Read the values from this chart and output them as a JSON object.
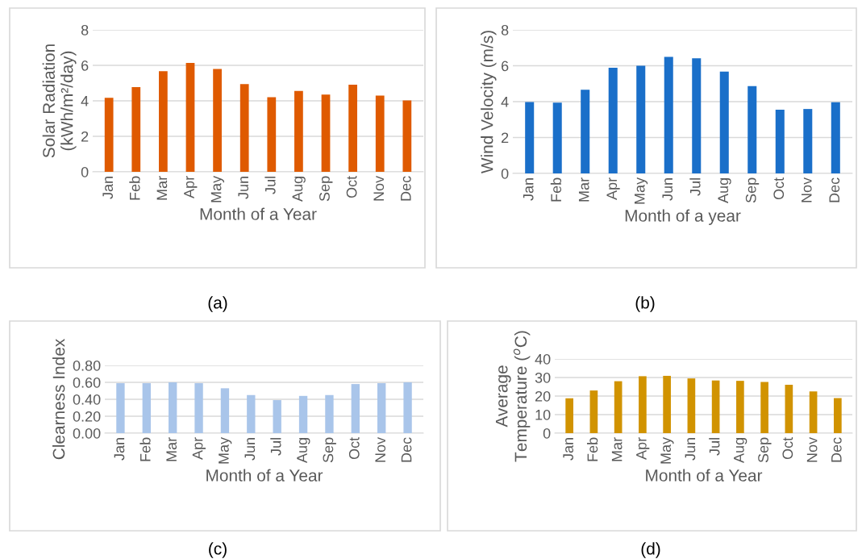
{
  "chart_data": [
    {
      "type": "bar",
      "ylabel": "Solar Radiation\n(kWh/m²/day)",
      "xlabel": "Month of a Year",
      "annotations": [
        "(a)"
      ],
      "categories": [
        "Jan",
        "Feb",
        "Mar",
        "Apr",
        "May",
        "Jun",
        "Jul",
        "Aug",
        "Sep",
        "Oct",
        "Nov",
        "Dec"
      ],
      "values": [
        4.17,
        4.77,
        5.67,
        6.14,
        5.8,
        4.94,
        4.2,
        4.56,
        4.35,
        4.91,
        4.3,
        4.02
      ],
      "color": "#df5a00",
      "ylim": [
        0,
        8
      ],
      "yticks": [
        0,
        2,
        4,
        6,
        8
      ],
      "grid": "y"
    },
    {
      "type": "bar",
      "ylabel": "Wind Velocity (m/s)",
      "xlabel": "Month of a year",
      "annotations": [
        "(b)"
      ],
      "categories": [
        "Jan",
        "Feb",
        "Mar",
        "Apr",
        "May",
        "Jun",
        "Jul",
        "Aug",
        "Sep",
        "Oct",
        "Nov",
        "Dec"
      ],
      "values": [
        3.98,
        3.94,
        4.66,
        5.89,
        6.0,
        6.5,
        6.42,
        5.67,
        4.87,
        3.55,
        3.59,
        3.97
      ],
      "color": "#1a6fc9",
      "ylim": [
        0,
        8
      ],
      "yticks": [
        0,
        2,
        4,
        6,
        8
      ],
      "grid": "y"
    },
    {
      "type": "bar",
      "ylabel": "Clearness Index",
      "xlabel": "Month of a Year",
      "annotations": [
        "(c)"
      ],
      "categories": [
        "Jan",
        "Feb",
        "Mar",
        "Apr",
        "May",
        "Jun",
        "Jul",
        "Aug",
        "Sep",
        "Oct",
        "Nov",
        "Dec"
      ],
      "values": [
        0.59,
        0.59,
        0.6,
        0.59,
        0.53,
        0.45,
        0.39,
        0.44,
        0.45,
        0.58,
        0.59,
        0.6
      ],
      "color": "#a9c5ea",
      "ylim": [
        0,
        0.8
      ],
      "yticks": [
        {
          "value": 0,
          "label": "0.00"
        },
        {
          "value": 0.2,
          "label": "0.20"
        },
        {
          "value": 0.4,
          "label": "0.40"
        },
        {
          "value": 0.6,
          "label": "0.60"
        },
        {
          "value": 0.8,
          "label": "0.80"
        }
      ],
      "grid": "y"
    },
    {
      "type": "bar",
      "ylabel": "Average\nTemperature ($^{o}$C)",
      "xlabel": "Month of a Year",
      "annotations": [
        "(d)"
      ],
      "categories": [
        "Jan",
        "Feb",
        "Mar",
        "Apr",
        "May",
        "Jun",
        "Jul",
        "Aug",
        "Sep",
        "Oct",
        "Nov",
        "Dec"
      ],
      "values": [
        18.8,
        23.0,
        28.0,
        30.7,
        30.9,
        29.5,
        28.4,
        28.2,
        27.6,
        26.1,
        22.5,
        18.9
      ],
      "color": "#d19300",
      "ylim": [
        0,
        40
      ],
      "yticks": [
        0,
        10,
        20,
        30,
        40
      ],
      "grid": "y"
    }
  ]
}
